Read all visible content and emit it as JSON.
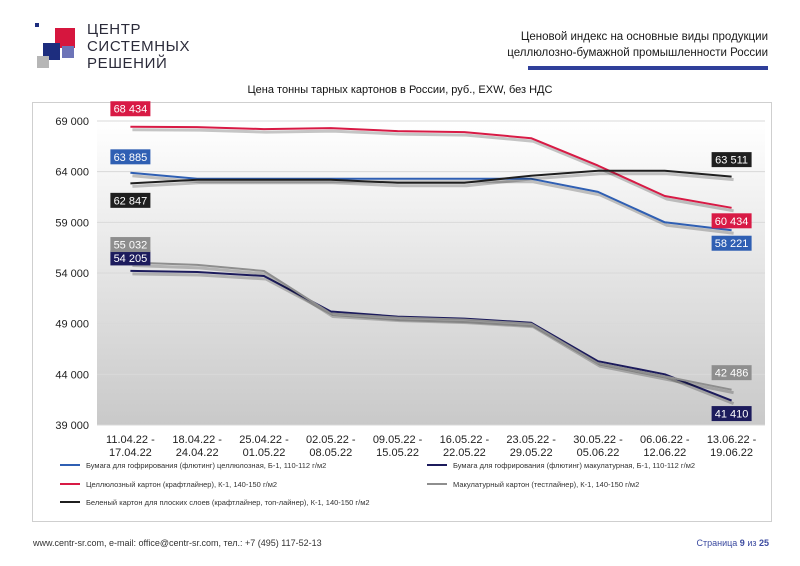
{
  "logo": {
    "lines": [
      "ЦЕНТР",
      "СИСТЕМНЫХ",
      "РЕШЕНИЙ"
    ]
  },
  "header": {
    "title_line1": "Ценовой индекс на основные виды продукции",
    "title_line2": "целлюлозно-бумажной промышленности России"
  },
  "chart_data": {
    "type": "line",
    "title": "Цена тонны тарных картонов в России, руб., EXW, без НДС",
    "categories": [
      [
        "11.04.22 -",
        "17.04.22"
      ],
      [
        "18.04.22 -",
        "24.04.22"
      ],
      [
        "25.04.22 -",
        "01.05.22"
      ],
      [
        "02.05.22 -",
        "08.05.22"
      ],
      [
        "09.05.22 -",
        "15.05.22"
      ],
      [
        "16.05.22 -",
        "22.05.22"
      ],
      [
        "23.05.22 -",
        "29.05.22"
      ],
      [
        "30.05.22 -",
        "05.06.22"
      ],
      [
        "06.06.22 -",
        "12.06.22"
      ],
      [
        "13.06.22 -",
        "19.06.22"
      ]
    ],
    "ylim": [
      39000,
      69000
    ],
    "yticks": [
      39000,
      44000,
      49000,
      54000,
      59000,
      64000,
      69000
    ],
    "ytick_labels": [
      "39 000",
      "44 000",
      "49 000",
      "54 000",
      "59 000",
      "64 000",
      "69 000"
    ],
    "grid": "horizontal",
    "series": [
      {
        "name": "Бумага для гофрирования (флютинг) целлюлозная, Б-1, 110-112 г/м2",
        "color": "#2f5fb3",
        "values": [
          63885,
          63300,
          63300,
          63300,
          63300,
          63300,
          63300,
          62000,
          59000,
          58221
        ],
        "first_label": "63 885",
        "last_label": "58 221"
      },
      {
        "name": "Бумага для гофрирования (флютинг) макулатурная, Б-1, 110-112 г/м2",
        "color": "#1c1b5c",
        "values": [
          54205,
          54100,
          53700,
          50200,
          49700,
          49500,
          49100,
          45300,
          44000,
          41410
        ],
        "first_label": "54 205",
        "last_label": "41 410"
      },
      {
        "name": "Целлюлозный картон (крафтлайнер), К-1, 140-150 г/м2",
        "color": "#d81a45",
        "values": [
          68434,
          68400,
          68200,
          68300,
          68000,
          67900,
          67300,
          64600,
          61600,
          60434
        ],
        "first_label": "68 434",
        "last_label": "60 434"
      },
      {
        "name": "Макулатурный картон (тестлайнер), К-1, 140-150 г/м2",
        "color": "#8e8e8e",
        "values": [
          55032,
          54800,
          54200,
          50000,
          49600,
          49400,
          49000,
          45100,
          43800,
          42486
        ],
        "first_label": "55 032",
        "last_label": "42 486"
      },
      {
        "name": "Беленый картон для плоских слоев (крафтлайнер, топ-лайнер), К-1, 140-150 г/м2",
        "color": "#1f1f1f",
        "values": [
          62847,
          63200,
          63200,
          63200,
          62900,
          62900,
          63600,
          64100,
          64100,
          63511
        ],
        "first_label": "62 847",
        "last_label": "63 511"
      }
    ]
  },
  "footer": {
    "contacts": "www.centr-sr.com, e-mail: office@centr-sr.com, тел.: +7 (495) 117-52-13",
    "page_word": "Страница",
    "page_current": "9",
    "page_of": "из",
    "page_total": "25"
  }
}
